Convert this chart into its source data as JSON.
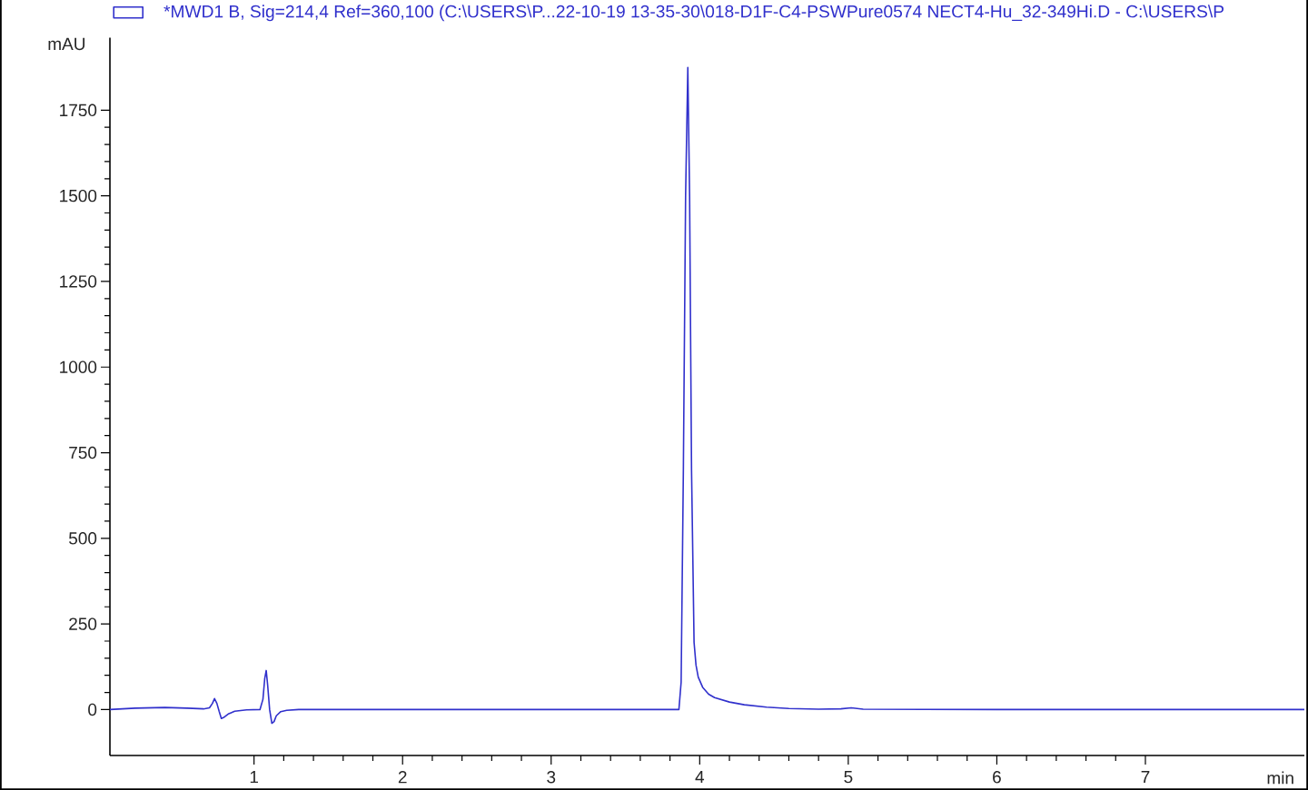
{
  "chart_data": {
    "type": "line",
    "xlabel": "min",
    "ylabel": "mAU",
    "x": [
      0.03,
      0.2,
      0.4,
      0.55,
      0.66,
      0.7,
      0.72,
      0.734,
      0.75,
      0.765,
      0.78,
      0.8,
      0.83,
      0.87,
      0.95,
      1.04,
      1.06,
      1.072,
      1.082,
      1.092,
      1.105,
      1.12,
      1.135,
      1.15,
      1.18,
      1.22,
      1.3,
      2.0,
      3.0,
      3.86,
      3.875,
      3.89,
      3.905,
      3.92,
      3.932,
      3.945,
      3.962,
      3.975,
      3.99,
      4.02,
      4.06,
      4.1,
      4.2,
      4.3,
      4.45,
      4.6,
      4.8,
      4.95,
      5.02,
      5.1,
      6.0,
      7.0,
      8.07
    ],
    "series": [
      {
        "name": "*MWD1 B, Sig=214,4 Ref=360,100 (C:\\USERS\\P...22-10-19 13-35-30\\018-D1F-C4-PSWPure0574 NECT4-Hu_32-349Hi.D - C:\\USERS\\P",
        "color": "#3030cc",
        "values": [
          0,
          4,
          6,
          4,
          2,
          5,
          18,
          32,
          18,
          -5,
          -26,
          -22,
          -12,
          -5,
          -1,
          0,
          30,
          90,
          114,
          70,
          0,
          -40,
          -35,
          -18,
          -6,
          -2,
          0,
          0,
          0,
          0,
          80,
          700,
          1500,
          1875,
          1500,
          700,
          196,
          130,
          95,
          65,
          45,
          35,
          22,
          14,
          7,
          3,
          1,
          2,
          5,
          1,
          0,
          0,
          0
        ]
      }
    ],
    "xlim": [
      0.03,
      8.07
    ],
    "ylim": [
      -134,
      1962
    ],
    "xticks": [
      1,
      2,
      3,
      4,
      5,
      6,
      7
    ],
    "yticks": [
      0,
      250,
      500,
      750,
      1000,
      1250,
      1500,
      1750
    ],
    "legend": "top",
    "marker": "none",
    "line_style": "solid",
    "grid": false
  }
}
